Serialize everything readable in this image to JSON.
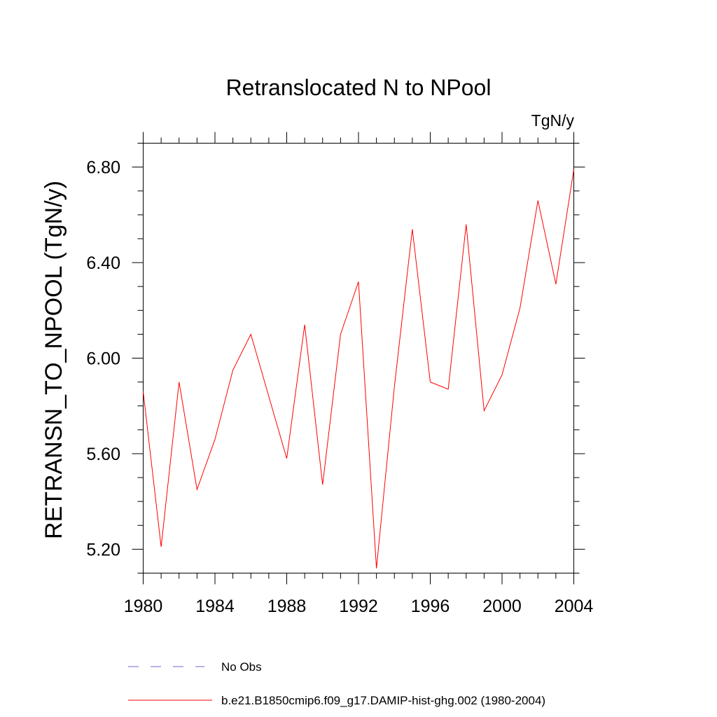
{
  "chart_data": {
    "type": "line",
    "title": "Retranslocated N to NPool",
    "units_label": "TgN/y",
    "ylabel": "RETRANSN_TO_NPOOL  (TgN/y)",
    "xlabel": "",
    "xlim": [
      1980,
      2004
    ],
    "ylim": [
      5.1,
      6.9
    ],
    "x_ticks": [
      1980,
      1984,
      1988,
      1992,
      1996,
      2000,
      2004
    ],
    "x_tick_labels": [
      "1980",
      "1984",
      "1988",
      "1992",
      "1996",
      "2000",
      "2004"
    ],
    "y_ticks": [
      5.2,
      5.6,
      6.0,
      6.4,
      6.8
    ],
    "y_tick_labels": [
      "5.20",
      "5.60",
      "6.00",
      "6.40",
      "6.80"
    ],
    "x_minor_step": 1,
    "y_minor_step": 0.1,
    "grid": false,
    "legend_position": "bottom",
    "series": [
      {
        "name": "No Obs",
        "color": "#6a6ad0",
        "style": "dashed",
        "x": [],
        "values": []
      },
      {
        "name": "b.e21.B1850cmip6.f09_g17.DAMIP-hist-ghg.002 (1980-2004)",
        "color": "#ff0000",
        "style": "solid",
        "x": [
          1980,
          1981,
          1982,
          1983,
          1984,
          1985,
          1986,
          1987,
          1988,
          1989,
          1990,
          1991,
          1992,
          1993,
          1994,
          1995,
          1996,
          1997,
          1998,
          1999,
          2000,
          2001,
          2002,
          2003,
          2004
        ],
        "values": [
          5.86,
          5.21,
          5.9,
          5.45,
          5.66,
          5.95,
          6.1,
          5.84,
          5.58,
          6.14,
          5.47,
          6.1,
          6.32,
          5.12,
          5.88,
          6.54,
          5.9,
          5.87,
          6.56,
          5.78,
          5.93,
          6.21,
          6.66,
          6.31,
          6.79
        ]
      }
    ]
  }
}
